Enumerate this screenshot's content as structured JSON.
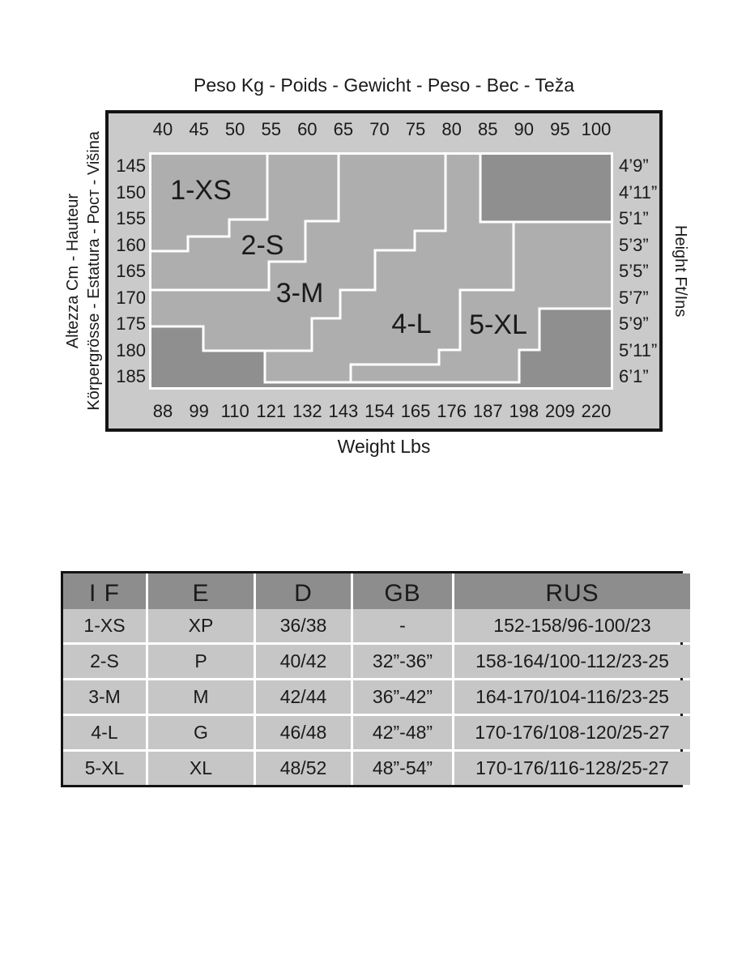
{
  "chart": {
    "title": "Peso Kg - Poids - Gewicht - Peso - Bec - Teža",
    "axis_titles": {
      "left_line1": "Altezza Cm - Hauteur",
      "left_line2": "Körpergrösse - Estatura - Рост - Višina",
      "right": "Height Ft/Ins",
      "bottom": "Weight Lbs"
    },
    "colors": {
      "box_bg": "#cacaca",
      "box_border": "#141414",
      "zone_light": "#aeaeae",
      "zone_dark": "#8f8f8f",
      "divider": "#ffffff",
      "text": "#1a1a1a"
    }
  },
  "chart_data": {
    "type": "area",
    "title": "Peso Kg - Poids - Gewicht - Peso - Bec - Teža",
    "xlabel": "Weight Lbs",
    "ylabel": "Height Ft/Ins",
    "x_axis_kg": [
      "40",
      "45",
      "50",
      "55",
      "60",
      "65",
      "70",
      "75",
      "80",
      "85",
      "90",
      "95",
      "100"
    ],
    "x_axis_lbs": [
      "88",
      "99",
      "110",
      "121",
      "132",
      "143",
      "154",
      "165",
      "176",
      "187",
      "198",
      "209",
      "220"
    ],
    "y_axis_cm": [
      "145",
      "150",
      "155",
      "160",
      "165",
      "170",
      "175",
      "180",
      "185"
    ],
    "y_axis_ftins": [
      "4’9”",
      "4’11”",
      "5’1”",
      "5’3”",
      "5’5”",
      "5’7”",
      "5’9”",
      "5’11”",
      "6’1”"
    ],
    "x_range_kg": [
      37.5,
      102.5
    ],
    "y_range_cm": [
      142.5,
      187.5
    ],
    "plot_size": [
      573,
      293
    ],
    "zones": [
      {
        "id": "zone-1-xs",
        "label": "1-XS",
        "fill": "light",
        "label_xy": [
          64,
          47
        ],
        "polygon": [
          [
            0,
            0
          ],
          [
            146,
            0
          ],
          [
            146,
            83
          ],
          [
            99,
            83
          ],
          [
            99,
            104
          ],
          [
            48,
            104
          ],
          [
            48,
            122
          ],
          [
            0,
            122
          ]
        ]
      },
      {
        "id": "zone-2-s",
        "label": "2-S",
        "fill": "light",
        "label_xy": [
          140,
          115
        ],
        "polygon": [
          [
            146,
            0
          ],
          [
            234,
            0
          ],
          [
            234,
            85
          ],
          [
            193,
            85
          ],
          [
            193,
            135
          ],
          [
            148,
            135
          ],
          [
            148,
            170
          ],
          [
            0,
            170
          ],
          [
            0,
            122
          ],
          [
            48,
            122
          ],
          [
            48,
            104
          ],
          [
            99,
            104
          ],
          [
            99,
            83
          ],
          [
            146,
            83
          ]
        ]
      },
      {
        "id": "zone-3-m",
        "label": "3-M",
        "fill": "light",
        "label_xy": [
          186,
          174
        ],
        "polygon": [
          [
            234,
            0
          ],
          [
            366,
            0
          ],
          [
            366,
            97
          ],
          [
            328,
            97
          ],
          [
            328,
            121
          ],
          [
            279,
            121
          ],
          [
            279,
            170
          ],
          [
            236,
            170
          ],
          [
            236,
            205
          ],
          [
            201,
            205
          ],
          [
            201,
            245
          ],
          [
            67,
            245
          ],
          [
            67,
            215
          ],
          [
            0,
            215
          ],
          [
            0,
            170
          ],
          [
            148,
            170
          ],
          [
            148,
            135
          ],
          [
            193,
            135
          ],
          [
            193,
            85
          ],
          [
            234,
            85
          ]
        ]
      },
      {
        "id": "zone-4-l",
        "label": "4-L",
        "fill": "light",
        "label_xy": [
          324,
          212
        ],
        "polygon": [
          [
            366,
            0
          ],
          [
            409,
            0
          ],
          [
            409,
            86
          ],
          [
            450,
            86
          ],
          [
            450,
            170
          ],
          [
            384,
            170
          ],
          [
            384,
            244
          ],
          [
            358,
            244
          ],
          [
            358,
            262
          ],
          [
            249,
            262
          ],
          [
            249,
            284
          ],
          [
            143,
            284
          ],
          [
            143,
            245
          ],
          [
            201,
            245
          ],
          [
            201,
            205
          ],
          [
            236,
            205
          ],
          [
            236,
            170
          ],
          [
            279,
            170
          ],
          [
            279,
            121
          ],
          [
            328,
            121
          ],
          [
            328,
            97
          ],
          [
            366,
            97
          ]
        ]
      },
      {
        "id": "zone-5-xl",
        "label": "5-XL",
        "fill": "light",
        "label_xy": [
          431,
          213
        ],
        "polygon": [
          [
            450,
            86
          ],
          [
            573,
            86
          ],
          [
            573,
            193
          ],
          [
            482,
            193
          ],
          [
            482,
            244
          ],
          [
            457,
            244
          ],
          [
            457,
            284
          ],
          [
            249,
            284
          ],
          [
            249,
            262
          ],
          [
            358,
            262
          ],
          [
            358,
            244
          ],
          [
            384,
            244
          ],
          [
            384,
            170
          ],
          [
            450,
            170
          ]
        ]
      },
      {
        "id": "zone-dark-top-right",
        "label": "",
        "fill": "dark",
        "label_xy": [
          0,
          0
        ],
        "polygon": [
          [
            409,
            0
          ],
          [
            573,
            0
          ],
          [
            573,
            86
          ],
          [
            409,
            86
          ]
        ]
      },
      {
        "id": "zone-dark-bottom",
        "label": "",
        "fill": "dark",
        "label_xy": [
          0,
          0
        ],
        "polygon": [
          [
            0,
            215
          ],
          [
            67,
            215
          ],
          [
            67,
            245
          ],
          [
            143,
            245
          ],
          [
            143,
            284
          ],
          [
            457,
            284
          ],
          [
            457,
            244
          ],
          [
            482,
            244
          ],
          [
            482,
            193
          ],
          [
            573,
            193
          ],
          [
            573,
            293
          ],
          [
            0,
            293
          ]
        ]
      }
    ]
  },
  "table": {
    "headers": [
      "I F",
      "E",
      "D",
      "GB",
      "RUS"
    ],
    "rows": [
      [
        "1-XS",
        "XP",
        "36/38",
        "-",
        "152-158/96-100/23"
      ],
      [
        "2-S",
        "P",
        "40/42",
        "32”-36”",
        "158-164/100-112/23-25"
      ],
      [
        "3-M",
        "M",
        "42/44",
        "36”-42”",
        "164-170/104-116/23-25"
      ],
      [
        "4-L",
        "G",
        "46/48",
        "42”-48”",
        "170-176/108-120/25-27"
      ],
      [
        "5-XL",
        "XL",
        "48/52",
        "48”-54”",
        "170-176/116-128/25-27"
      ]
    ]
  }
}
